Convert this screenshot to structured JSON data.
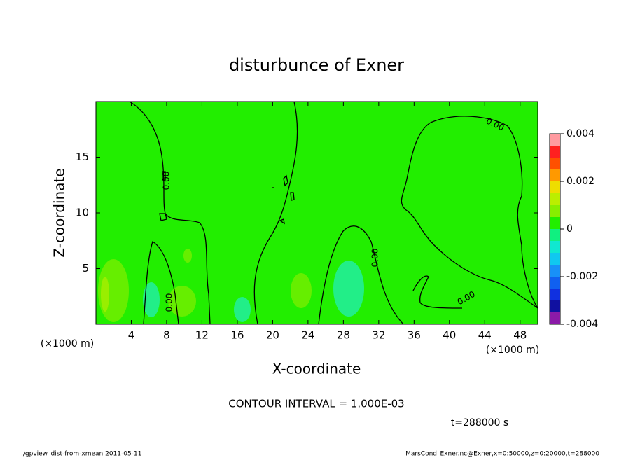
{
  "chart_data": {
    "type": "contour",
    "title": "disturbunce of Exner",
    "x_label": "X-coordinate",
    "y_label": "Z-coordinate",
    "x_unit_left": "(×1000 m)",
    "x_unit_right": "(×1000 m)",
    "xlim": [
      0,
      50
    ],
    "xticks": [
      4,
      8,
      12,
      16,
      20,
      24,
      28,
      32,
      36,
      40,
      44,
      48
    ],
    "ylim": [
      0,
      20
    ],
    "yticks": [
      5,
      10,
      15
    ],
    "colorbar": {
      "lim": [
        -0.004,
        0.004
      ],
      "ticks": [
        0.004,
        0.002,
        0,
        -0.002,
        -0.004
      ],
      "levels": [
        -0.004,
        -0.0035,
        -0.003,
        -0.0025,
        -0.002,
        -0.0015,
        -0.001,
        -0.0005,
        0,
        0.0005,
        0.001,
        0.0015,
        0.002,
        0.0025,
        0.003,
        0.0035,
        0.004
      ],
      "colors": [
        "#8b1aa8",
        "#1010a0",
        "#1030e0",
        "#1060f0",
        "#1890f8",
        "#10c8f0",
        "#10e8d0",
        "#10f080",
        "#22ee00",
        "#88ee00",
        "#bbee00",
        "#eedd00",
        "#ff9900",
        "#ff5000",
        "#ff2020",
        "#ff9aa0"
      ]
    },
    "contour_labels": [
      "0.00",
      "0.00",
      "0.00",
      "0.00",
      "0.00"
    ],
    "contour_interval": "CONTOUR INTERVAL = 1.000E-03",
    "time": "t=288000 s",
    "footer_left": "./gpview_dist-from-xmean  2011-05-11",
    "footer_right": "MarsCond_Exner.nc@Exner,x=0:50000,z=0:20000,t=288000"
  }
}
